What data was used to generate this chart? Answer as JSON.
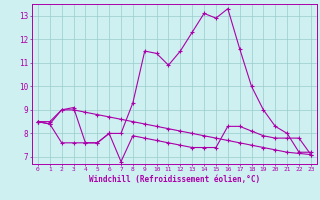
{
  "xlabel": "Windchill (Refroidissement éolien,°C)",
  "xlim": [
    -0.5,
    23.5
  ],
  "ylim": [
    6.7,
    13.5
  ],
  "yticks": [
    7,
    8,
    9,
    10,
    11,
    12,
    13
  ],
  "xticks": [
    0,
    1,
    2,
    3,
    4,
    5,
    6,
    7,
    8,
    9,
    10,
    11,
    12,
    13,
    14,
    15,
    16,
    17,
    18,
    19,
    20,
    21,
    22,
    23
  ],
  "bg_color": "#cef0f0",
  "line_color": "#aa00aa",
  "grid_color": "#99cccc",
  "line1": [
    8.5,
    8.4,
    9.0,
    9.1,
    7.6,
    7.6,
    8.0,
    8.0,
    9.3,
    11.5,
    11.4,
    10.9,
    11.5,
    12.3,
    13.1,
    12.9,
    13.3,
    11.6,
    10.0,
    9.0,
    8.3,
    8.0,
    7.2,
    7.2
  ],
  "line2": [
    8.5,
    8.5,
    9.0,
    9.0,
    8.9,
    8.8,
    8.7,
    8.6,
    8.5,
    8.4,
    8.3,
    8.2,
    8.1,
    8.0,
    7.9,
    7.8,
    7.7,
    7.6,
    7.5,
    7.4,
    7.3,
    7.2,
    7.15,
    7.1
  ],
  "line3": [
    8.5,
    8.4,
    7.6,
    7.6,
    7.6,
    7.6,
    8.0,
    6.8,
    7.9,
    7.8,
    7.7,
    7.6,
    7.5,
    7.4,
    7.4,
    7.4,
    8.3,
    8.3,
    8.1,
    7.9,
    7.8,
    7.8,
    7.8,
    7.1
  ]
}
